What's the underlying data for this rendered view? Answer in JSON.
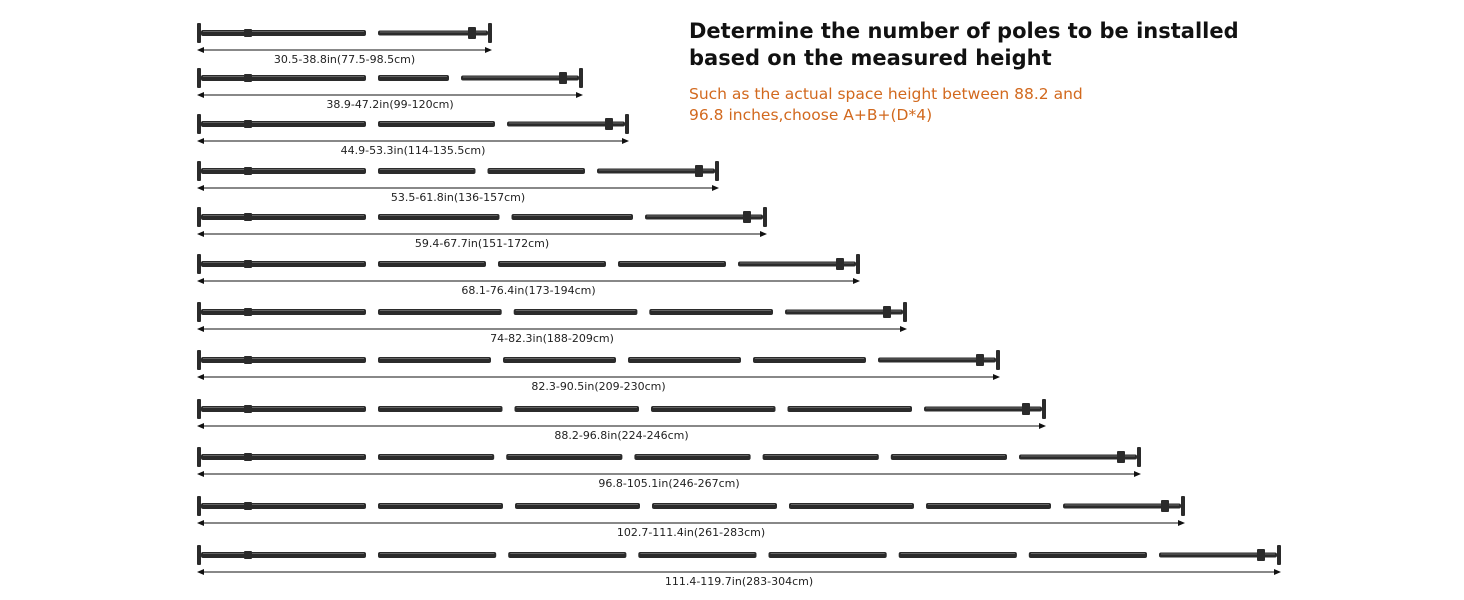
{
  "heading": {
    "line1": "Determine the number of poles to be installed",
    "line2": "based on the measured height"
  },
  "note": {
    "line1": "Such as the actual space height between  88.2 and",
    "line2": "96.8 inches,choose A+B+(D*4)"
  },
  "colors": {
    "pole": "#2b2b2b",
    "pole_highlight": "#8a8a8a",
    "arrow": "#111111",
    "heading": "#111111",
    "note": "#d2691e"
  },
  "configurations": [
    {
      "label": "30.5-38.8in(77.5-98.5cm)",
      "segments": 2
    },
    {
      "label": "38.9-47.2in(99-120cm)",
      "segments": 3
    },
    {
      "label": "44.9-53.3in(114-135.5cm)",
      "segments": 3
    },
    {
      "label": "53.5-61.8in(136-157cm)",
      "segments": 4
    },
    {
      "label": "59.4-67.7in(151-172cm)",
      "segments": 4
    },
    {
      "label": "68.1-76.4in(173-194cm)",
      "segments": 5
    },
    {
      "label": "74-82.3in(188-209cm)",
      "segments": 5
    },
    {
      "label": "82.3-90.5in(209-230cm)",
      "segments": 6
    },
    {
      "label": "88.2-96.8in(224-246cm)",
      "segments": 6
    },
    {
      "label": "96.8-105.1in(246-267cm)",
      "segments": 7
    },
    {
      "label": "102.7-111.4in(261-283cm)",
      "segments": 7
    },
    {
      "label": "111.4-119.7in(283-304cm)",
      "segments": 8
    }
  ]
}
